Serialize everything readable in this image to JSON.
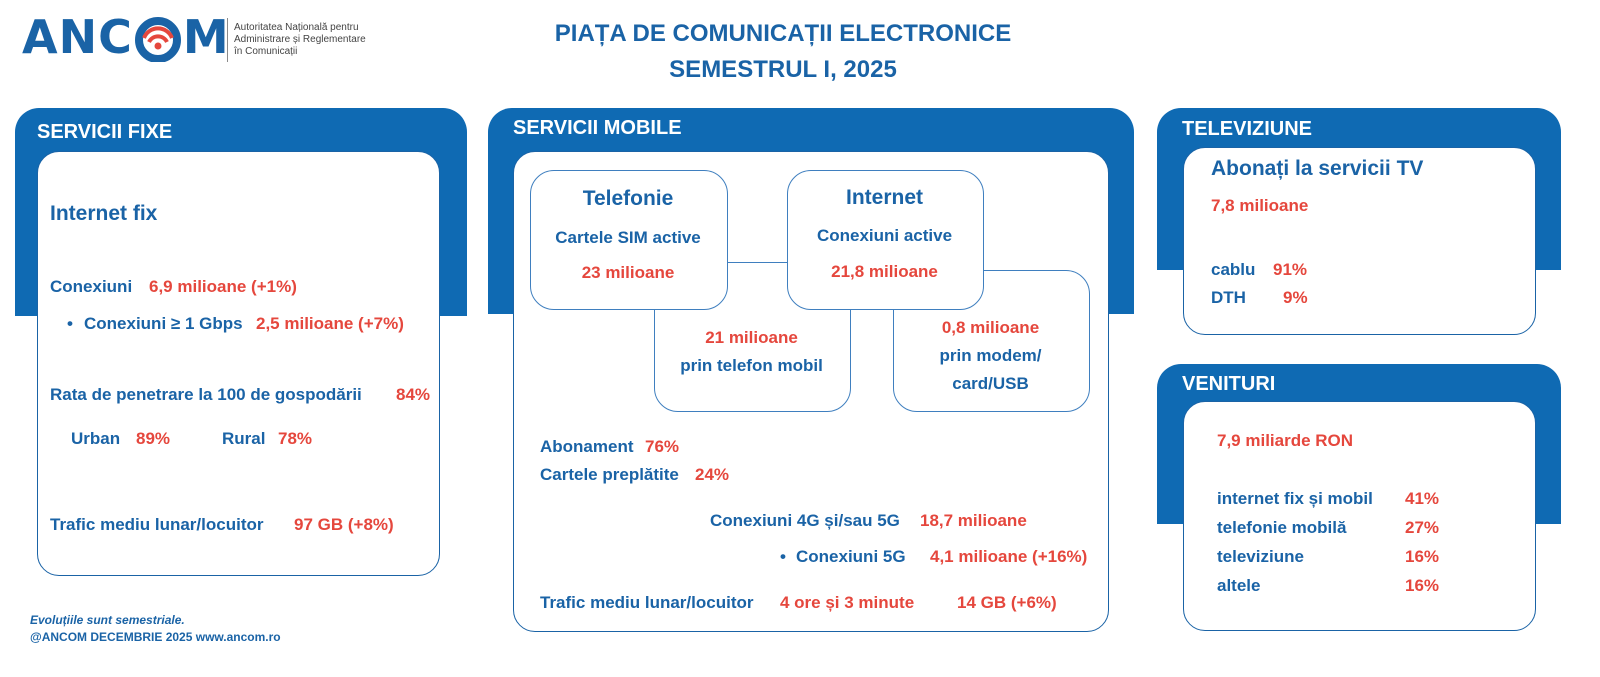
{
  "logo": {
    "wordmark": "ANCOM",
    "wordmark_left": "ANC",
    "wordmark_right": "M",
    "tagline_lines": [
      "Autoritatea Națională pentru",
      "Administrare și Reglementare",
      "în Comunicații"
    ]
  },
  "title": {
    "line1": "PIAȚA DE COMUNICAȚII ELECTRONICE",
    "line2": "SEMESTRUL I, 2025"
  },
  "fixed": {
    "header": "SERVICII FIXE",
    "section_title": "Internet fix",
    "connections_label": "Conexiuni",
    "connections_value": "6,9 milioane (+1%)",
    "bullet": "•",
    "gbps_label": "Conexiuni ≥ 1 Gbps",
    "gbps_value": "2,5 milioane (+7%)",
    "penetration_label": "Rata de penetrare la 100 de gospodării",
    "penetration_value": "84%",
    "urban_label": "Urban",
    "urban_value": "89%",
    "rural_label": "Rural",
    "rural_value": "78%",
    "traffic_label": "Trafic mediu lunar/locuitor",
    "traffic_value": "97 GB (+8%)"
  },
  "mobile": {
    "header": "SERVICII MOBILE",
    "telephony": {
      "title": "Telefonie",
      "label": "Cartele SIM active",
      "value": "23 milioane"
    },
    "internet": {
      "title": "Internet",
      "label": "Conexiuni active",
      "value": "21,8 milioane"
    },
    "by_phone": {
      "value": "21 milioane",
      "label": "prin telefon mobil"
    },
    "by_modem": {
      "value": "0,8 milioane",
      "label1": "prin modem/",
      "label2": "card/USB"
    },
    "subscription_label": "Abonament",
    "subscription_value": "76%",
    "prepaid_label": "Cartele preplătite",
    "prepaid_value": "24%",
    "conn_4g5g_label": "Conexiuni 4G și/sau 5G",
    "conn_4g5g_value": "18,7 milioane",
    "bullet": "•",
    "conn_5g_label": "Conexiuni 5G",
    "conn_5g_value": "4,1 milioane (+16%)",
    "traffic_label": "Trafic mediu lunar/locuitor",
    "traffic_time": "4 ore și 3 minute",
    "traffic_data": "14 GB (+6%)"
  },
  "tv": {
    "header": "TELEVIZIUNE",
    "title": "Abonați la servicii TV",
    "value": "7,8 milioane",
    "cable_label": "cablu",
    "cable_value": "91%",
    "dth_label": "DTH",
    "dth_value": "9%"
  },
  "revenue": {
    "header": "VENITURI",
    "value": "7,9 miliarde RON",
    "items": [
      {
        "label": "internet fix și mobil",
        "value": "41%"
      },
      {
        "label": "telefonie mobilă",
        "value": "27%"
      },
      {
        "label": "televiziune",
        "value": "16%"
      },
      {
        "label": "altele",
        "value": "16%"
      }
    ]
  },
  "footer": {
    "line1": "Evoluțiile sunt semestriale.",
    "line2": "@ANCOM DECEMBRIE 2025 www.ancom.ro"
  },
  "colors": {
    "brand_blue": "#0f6ab3",
    "text_blue": "#1a63a6",
    "accent_red": "#e5473d"
  },
  "icons": {
    "logo_wifi": "wifi-signal-icon"
  }
}
